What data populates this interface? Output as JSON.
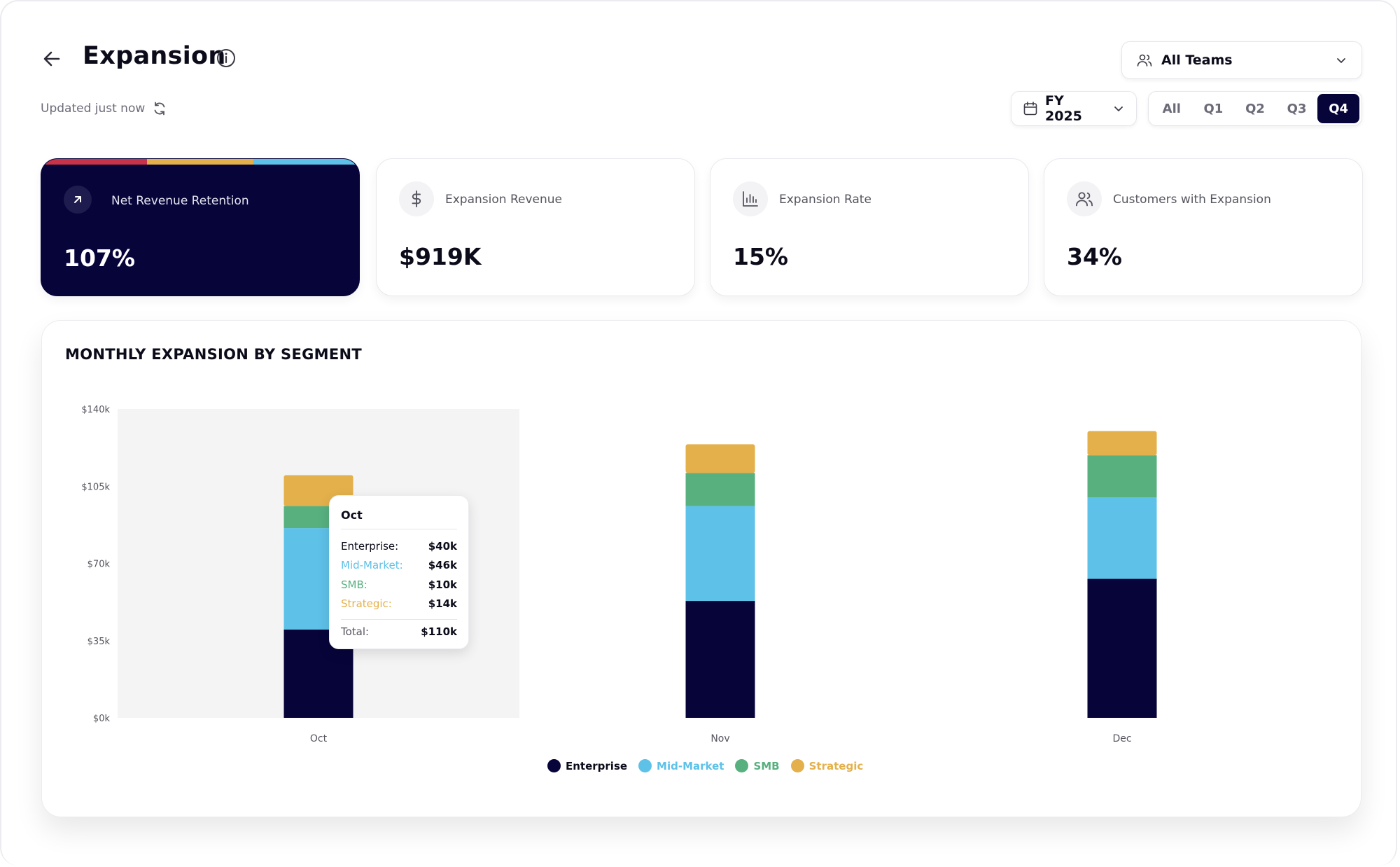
{
  "header": {
    "title": "Expansion",
    "updated": "Updated just now"
  },
  "filters": {
    "teams_label": "All Teams",
    "fy_label": "FY 2025",
    "quarters": [
      "All",
      "Q1",
      "Q2",
      "Q3",
      "Q4"
    ],
    "active_quarter": "Q4"
  },
  "kpis": [
    {
      "label": "Net Revenue Retention",
      "value": "107%",
      "icon": "arrow-up-right-icon"
    },
    {
      "label": "Expansion Revenue",
      "value": "$919K",
      "icon": "dollar-icon"
    },
    {
      "label": "Expansion Rate",
      "value": "15%",
      "icon": "bar-chart-icon"
    },
    {
      "label": "Customers with Expansion",
      "value": "34%",
      "icon": "users-icon"
    }
  ],
  "colors": {
    "enterprise": "#07043a",
    "mid_market": "#5ec1e8",
    "smb": "#58b07f",
    "strategic": "#e3b04b",
    "accent_red": "#c8334a"
  },
  "chart": {
    "title": "MONTHLY EXPANSION BY SEGMENT"
  },
  "chart_data": {
    "type": "bar",
    "stacked": true,
    "categories": [
      "Oct",
      "Nov",
      "Dec"
    ],
    "series": [
      {
        "name": "Enterprise",
        "values": [
          40,
          53,
          63
        ]
      },
      {
        "name": "Mid-Market",
        "values": [
          46,
          43,
          37
        ]
      },
      {
        "name": "SMB",
        "values": [
          10,
          15,
          19
        ]
      },
      {
        "name": "Strategic",
        "values": [
          14,
          13,
          11
        ]
      }
    ],
    "yticks": [
      "$0k",
      "$35k",
      "$70k",
      "$105k",
      "$140k"
    ],
    "ylim": [
      0,
      140
    ],
    "unit": "k",
    "legend_position": "bottom",
    "highlighted_category": "Oct"
  },
  "tooltip": {
    "title": "Oct",
    "rows": [
      {
        "label": "Enterprise:",
        "value": "$40k"
      },
      {
        "label": "Mid-Market:",
        "value": "$46k"
      },
      {
        "label": "SMB:",
        "value": "$10k"
      },
      {
        "label": "Strategic:",
        "value": "$14k"
      }
    ],
    "total_label": "Total:",
    "total_value": "$110k"
  }
}
